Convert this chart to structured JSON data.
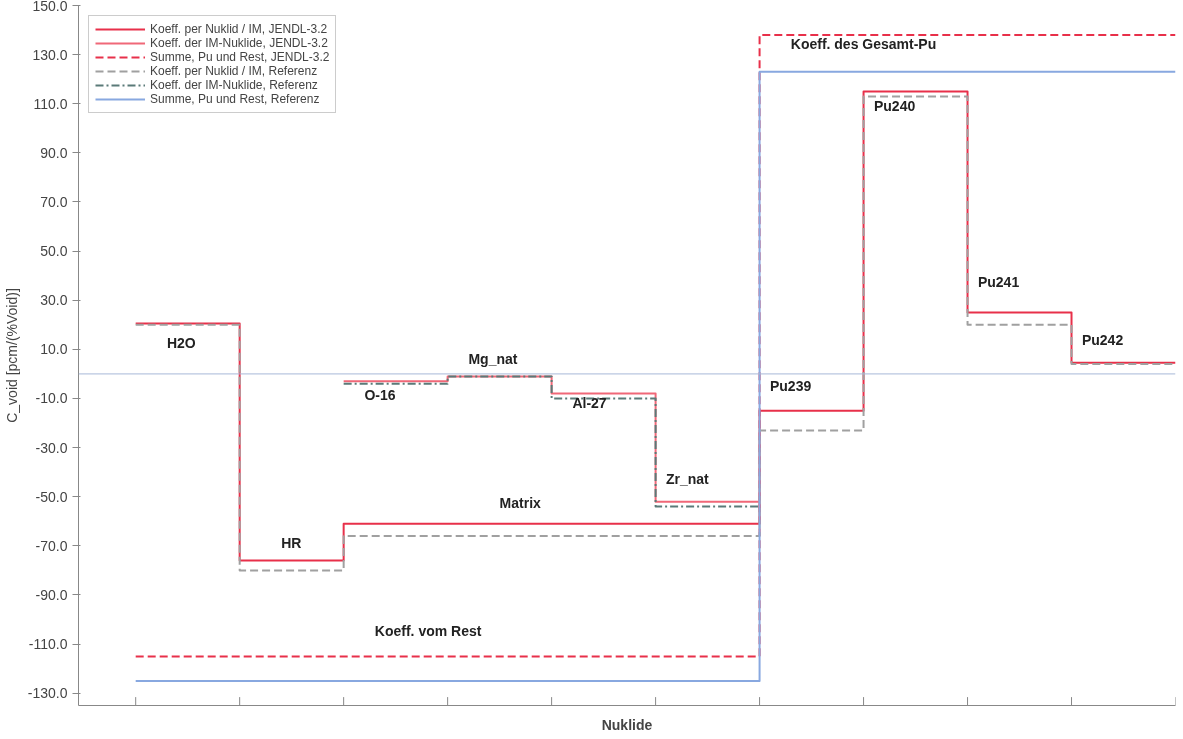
{
  "chart_data": {
    "type": "step",
    "xlabel": "Nuklide",
    "ylabel": "C_void [pcm/(%Void)]",
    "categories": [
      null,
      null,
      null,
      null,
      null,
      null,
      null,
      null,
      null,
      null,
      null
    ],
    "ylim": [
      -135,
      150
    ],
    "yticks": [
      {
        "value": -130,
        "label": "-130.0"
      },
      {
        "value": -110,
        "label": "-110.0"
      },
      {
        "value": -90,
        "label": "-90.0"
      },
      {
        "value": -70,
        "label": "-70.0"
      },
      {
        "value": -50,
        "label": "-50.0"
      },
      {
        "value": -30,
        "label": "-30.0"
      },
      {
        "value": -10,
        "label": "-10.0"
      },
      {
        "value": 10,
        "label": "10.0"
      },
      {
        "value": 30,
        "label": "30.0"
      },
      {
        "value": 50,
        "label": "50.0"
      },
      {
        "value": 70,
        "label": "70.0"
      },
      {
        "value": 90,
        "label": "90.0"
      },
      {
        "value": 110,
        "label": "110.0"
      },
      {
        "value": 130,
        "label": "130.0"
      },
      {
        "value": 150,
        "label": "150.0"
      }
    ],
    "tick_labels": "y",
    "grid": false,
    "legend": "top left",
    "series": [
      {
        "name": "Koeff. per Nuklid / IM, JENDL-3.2",
        "color": "#e8304a",
        "line_style": "solid",
        "values": [
          20.5,
          -76,
          -61,
          -61,
          -61,
          -61,
          -15,
          115,
          25,
          4.5,
          4.5
        ]
      },
      {
        "name": "Koeff. der IM-Nuklide, JENDL-3.2",
        "color": "#f06878",
        "line_style": "solid",
        "values": [
          null,
          null,
          -3,
          -1,
          -8,
          -52,
          -52,
          null,
          null,
          null,
          null
        ]
      },
      {
        "name": "Summe, Pu und Rest, JENDL-3.2",
        "color": "#e8304a",
        "line_style": "dashed",
        "values": [
          -115,
          -115,
          -115,
          -115,
          -115,
          -115,
          138,
          138,
          138,
          138,
          138
        ]
      },
      {
        "name": "Koeff. per Nuklid / IM, Referenz",
        "color": "#a0a0a0",
        "line_style": "dashed",
        "values": [
          20,
          -80,
          -66,
          -66,
          -66,
          -66,
          -23,
          113,
          20,
          4,
          4
        ]
      },
      {
        "name": "Koeff. der IM-Nuklide, Referenz",
        "color": "#5a7a78",
        "line_style": "dashdot",
        "values": [
          null,
          null,
          -4,
          -1,
          -10,
          -54,
          -54,
          null,
          null,
          null,
          null
        ]
      },
      {
        "name": "Summe, Pu und Rest, Referenz",
        "color": "#88a8e0",
        "line_style": "solid",
        "values": [
          -125,
          -125,
          -125,
          -125,
          -125,
          -125,
          123,
          123,
          123,
          123,
          123
        ]
      }
    ],
    "ref_lines": [
      {
        "axis": "y",
        "value": 0,
        "label": null,
        "color": "#a8b8d8"
      }
    ],
    "annotations": [
      "H2O",
      "HR",
      "O-16",
      "Mg_nat",
      "Al-27",
      "Zr_nat",
      "Matrix",
      "Koeff. vom Rest",
      "Pu239",
      "Pu240",
      "Pu241",
      "Pu242",
      "Koeff. des Gesamt-Pu"
    ]
  }
}
